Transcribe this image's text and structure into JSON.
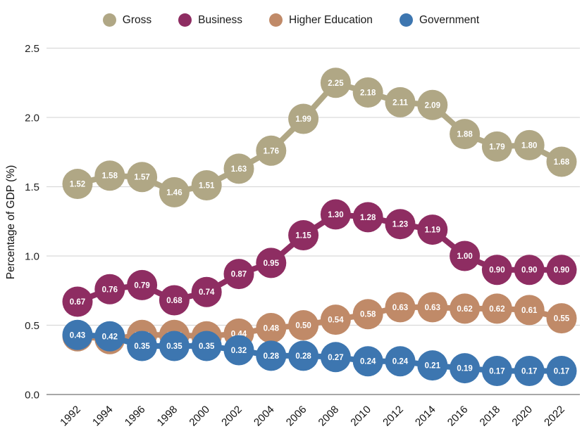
{
  "chart_data": {
    "type": "line",
    "title": "",
    "xlabel": "",
    "ylabel": "Percentage of GDP (%)",
    "x": [
      1992,
      1994,
      1996,
      1998,
      2000,
      2002,
      2004,
      2006,
      2008,
      2010,
      2012,
      2014,
      2016,
      2018,
      2020,
      2022
    ],
    "yticks": [
      0.0,
      0.5,
      1.0,
      1.5,
      2.0,
      2.5
    ],
    "ylim": [
      0,
      2.5
    ],
    "grid": true,
    "legend_position": "top",
    "point_style": "labeled-bubbles",
    "point_label_decimals": 2,
    "series": [
      {
        "name": "Gross",
        "color": "#b0a785",
        "values": [
          1.52,
          1.58,
          1.57,
          1.46,
          1.51,
          1.63,
          1.76,
          1.99,
          2.25,
          2.18,
          2.11,
          2.09,
          1.88,
          1.79,
          1.8,
          1.68
        ]
      },
      {
        "name": "Business",
        "color": "#8e2d62",
        "values": [
          0.67,
          0.76,
          0.79,
          0.68,
          0.74,
          0.87,
          0.95,
          1.15,
          1.3,
          1.28,
          1.23,
          1.19,
          1.0,
          0.9,
          0.9,
          0.9
        ]
      },
      {
        "name": "Higher Education",
        "color": "#c08a68",
        "values": [
          0.42,
          0.4,
          0.43,
          0.43,
          0.42,
          0.44,
          0.48,
          0.5,
          0.54,
          0.58,
          0.63,
          0.63,
          0.62,
          0.62,
          0.61,
          0.55
        ],
        "unlabeled_point_indices": [
          0,
          1,
          2,
          3,
          4
        ]
      },
      {
        "name": "Government",
        "color": "#3d76b0",
        "values": [
          0.43,
          0.42,
          0.35,
          0.35,
          0.35,
          0.32,
          0.28,
          0.28,
          0.27,
          0.24,
          0.24,
          0.21,
          0.19,
          0.17,
          0.17,
          0.17
        ]
      }
    ]
  }
}
